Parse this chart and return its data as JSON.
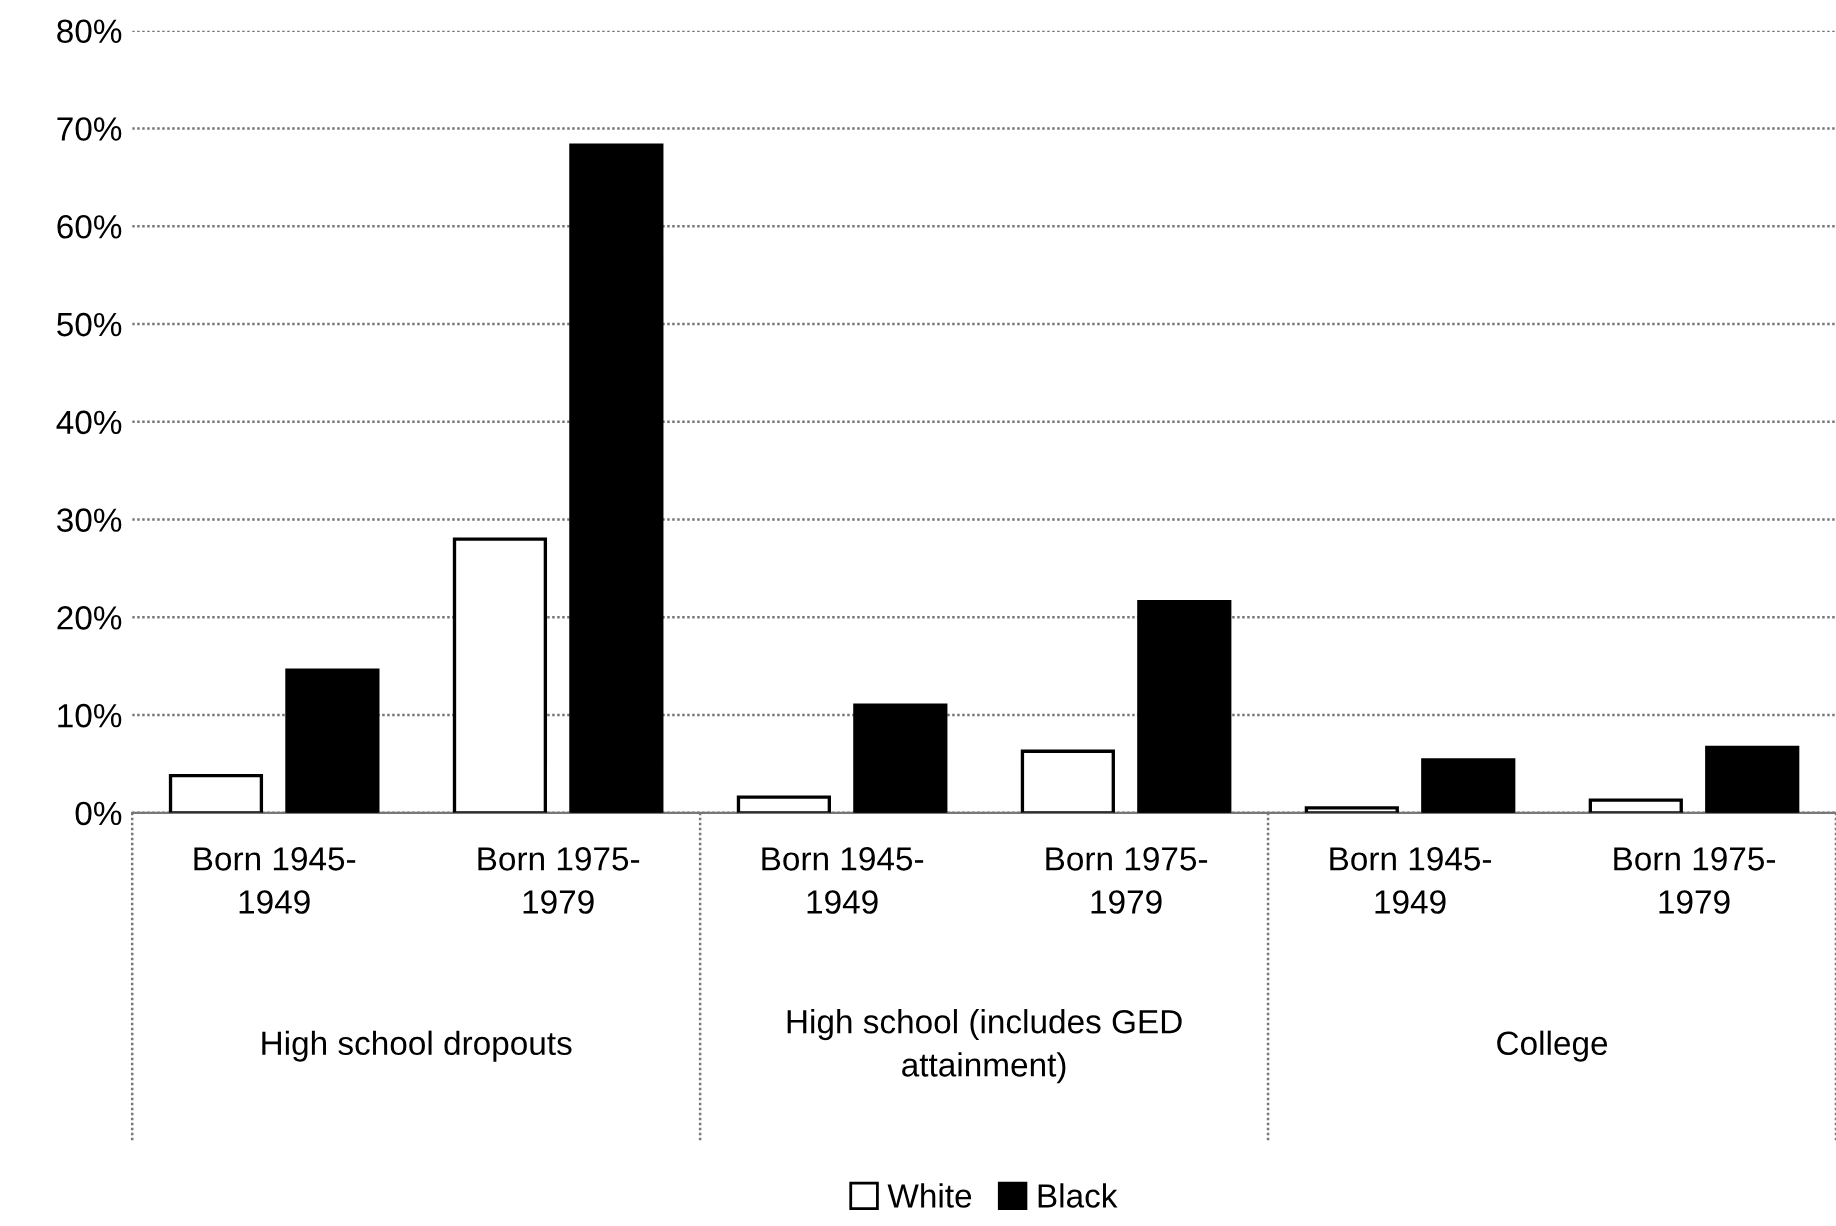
{
  "chart_data": {
    "type": "bar",
    "categories": [
      "Born 1945-\n1949",
      "Born 1975-\n1979",
      "Born 1945-\n1949",
      "Born 1975-\n1979",
      "Born 1945-\n1949",
      "Born 1975-\n1979"
    ],
    "series": [
      {
        "name": "White",
        "color": "#ffffff",
        "values": [
          3.8,
          28.0,
          1.6,
          6.3,
          0.5,
          1.3
        ]
      },
      {
        "name": "Black",
        "color": "#000000",
        "values": [
          14.6,
          68.3,
          11.0,
          21.6,
          5.4,
          6.7
        ]
      }
    ],
    "annotations": [
      "High school dropouts",
      "High school (includes GED\nattainment)",
      "College"
    ],
    "ylim": [
      0,
      80
    ],
    "yticks": [
      {
        "value": 0,
        "label": "0%"
      },
      {
        "value": 10,
        "label": "10%"
      },
      {
        "value": 20,
        "label": "20%"
      },
      {
        "value": 30,
        "label": "30%"
      },
      {
        "value": 40,
        "label": "40%"
      },
      {
        "value": 50,
        "label": "50%"
      },
      {
        "value": 60,
        "label": "60%"
      },
      {
        "value": 70,
        "label": "70%"
      },
      {
        "value": 80,
        "label": "80%"
      }
    ],
    "grid": "y",
    "legend": "bottom"
  }
}
